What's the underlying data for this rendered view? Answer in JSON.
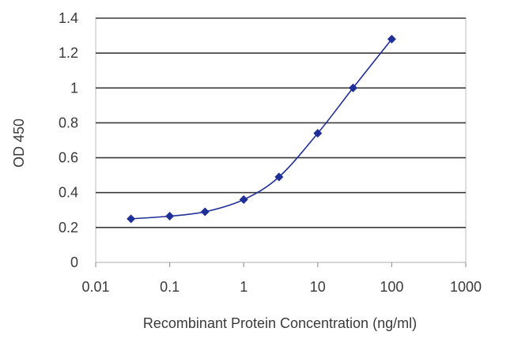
{
  "chart_data": {
    "type": "line",
    "title": "",
    "xlabel": "Recombinant Protein Concentration (ng/ml)",
    "ylabel": "OD 450",
    "x_scale": "log",
    "xlim": [
      0.01,
      1000
    ],
    "ylim": [
      0,
      1.4
    ],
    "x_ticks": [
      0.01,
      0.1,
      1,
      10,
      100,
      1000
    ],
    "x_tick_labels": [
      "0.01",
      "0.1",
      "1",
      "10",
      "100",
      "1000"
    ],
    "y_ticks": [
      0,
      0.2,
      0.4,
      0.6,
      0.8,
      1,
      1.2,
      1.4
    ],
    "y_tick_labels": [
      "0",
      "0.2",
      "0.4",
      "0.6",
      "0.8",
      "1",
      "1.2",
      "1.4"
    ],
    "grid": "horizontal",
    "legend": "none",
    "series": [
      {
        "color": "#1f2f9a",
        "marker": "diamond",
        "points": [
          {
            "x": 0.03,
            "y": 0.25
          },
          {
            "x": 0.1,
            "y": 0.265
          },
          {
            "x": 0.3,
            "y": 0.29
          },
          {
            "x": 1,
            "y": 0.36
          },
          {
            "x": 3,
            "y": 0.49
          },
          {
            "x": 10,
            "y": 0.74
          },
          {
            "x": 30,
            "y": 1.0
          },
          {
            "x": 100,
            "y": 1.28
          }
        ]
      }
    ],
    "gridline_color": "#3a3a3a",
    "frame_color": "#bdbdbd"
  }
}
